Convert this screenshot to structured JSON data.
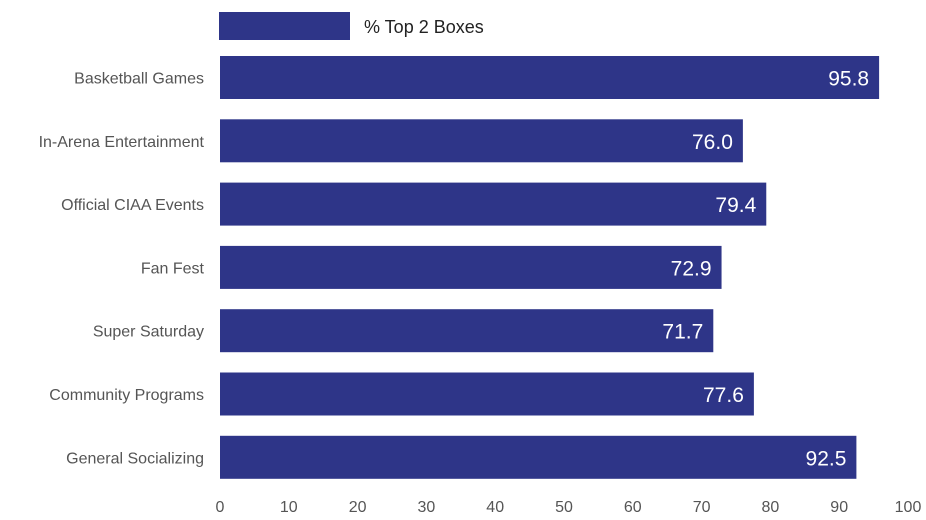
{
  "chart_data": {
    "type": "bar",
    "orientation": "horizontal",
    "categories": [
      "Basketball Games",
      "In-Arena Entertainment",
      "Official CIAA Events",
      "Fan Fest",
      "Super Saturday",
      "Community Programs",
      "General Socializing"
    ],
    "series": [
      {
        "name": "% Top 2 Boxes",
        "values": [
          95.8,
          76.0,
          79.4,
          72.9,
          71.7,
          77.6,
          92.5
        ]
      }
    ],
    "data_labels": [
      "95.8",
      "76.0",
      "79.4",
      "72.9",
      "71.7",
      "77.6",
      "92.5"
    ],
    "xlim": [
      0,
      100
    ],
    "x_ticks": [
      "0",
      "10",
      "20",
      "30",
      "40",
      "50",
      "60",
      "70",
      "80",
      "90",
      "100"
    ],
    "legend": "top",
    "grid": false,
    "colors": {
      "bar": "#2E3588"
    }
  }
}
